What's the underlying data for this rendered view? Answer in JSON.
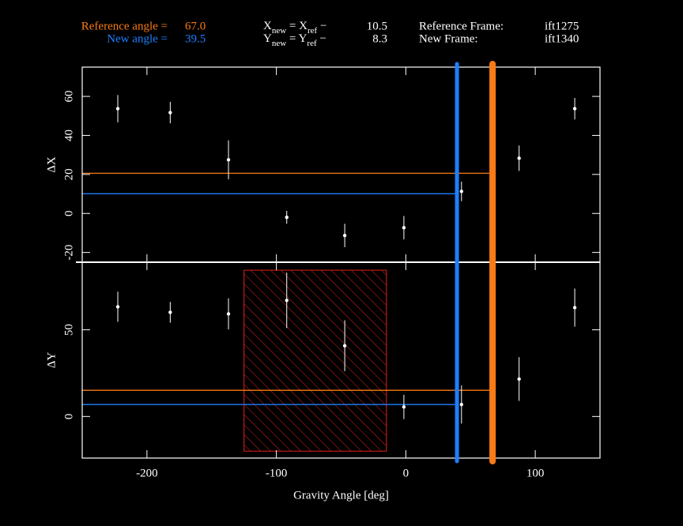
{
  "angles": {
    "reference": {
      "label": "Reference angle =",
      "value": 67,
      "value_label": "67.0",
      "color": "#f97b16"
    },
    "new": {
      "label": "New angle =",
      "value": 39.5,
      "value_label": "39.5",
      "color": "#1e7fff"
    }
  },
  "header": {
    "x_formula": [
      "X",
      "new",
      " = X",
      "ref",
      " −"
    ],
    "x_offset": 10.5,
    "y_formula": [
      "Y",
      "new",
      " = Y",
      "ref",
      " −"
    ],
    "y_offset": 8.3,
    "reference_frame_label": "Reference Frame:",
    "reference_frame": "ift1275",
    "new_frame_label": "New Frame:",
    "new_frame": "ift1340"
  },
  "chart_data": [
    {
      "type": "scatter",
      "ylabel": "ΔX",
      "x": [
        -222.5,
        -182,
        -137,
        -92,
        -47.2,
        -1.5,
        43,
        87.5,
        130.5
      ],
      "values": [
        53.7,
        51.7,
        27.5,
        -2,
        -11.3,
        -7.3,
        11.3,
        28.3,
        53.7
      ],
      "errors": [
        7,
        5.5,
        10,
        3.3,
        6,
        6,
        5,
        6.5,
        5.5
      ],
      "color": "#ffffff",
      "xlim": [
        -250,
        150
      ],
      "xticks": [
        -200,
        -100,
        0,
        100
      ],
      "ylim": [
        -25,
        75
      ],
      "yticks": [
        -20,
        0,
        20,
        40,
        60
      ],
      "hlines": [
        {
          "value": 20.6,
          "color": "#f97b16",
          "until": "reference"
        },
        {
          "value": 10.1,
          "color": "#1e7fff",
          "until": "new"
        }
      ]
    },
    {
      "type": "scatter",
      "ylabel": "ΔY",
      "xlabel": "Gravity Angle [deg]",
      "x": [
        -222.5,
        -182,
        -137,
        -92,
        -47.2,
        -1.5,
        43,
        87.5,
        130.5
      ],
      "values": [
        63.3,
        60.1,
        59.2,
        67,
        40.8,
        5.5,
        6.9,
        21.6,
        62.8
      ],
      "errors": [
        8.7,
        6,
        9,
        16,
        14.7,
        7,
        11,
        12.6,
        11
      ],
      "color": "#ffffff",
      "xlim": [
        -250,
        150
      ],
      "xticks": [
        -200,
        -100,
        0,
        100
      ],
      "ylim": [
        -24,
        89
      ],
      "yticks": [
        0,
        50
      ],
      "hlines": [
        {
          "value": 15.1,
          "color": "#f97b16",
          "until": "reference"
        },
        {
          "value": 6.9,
          "color": "#1e7fff",
          "until": "new"
        }
      ],
      "region": {
        "x": [
          -125,
          -15
        ],
        "y": [
          -20,
          84.4
        ],
        "color": "#e0201b"
      }
    }
  ]
}
